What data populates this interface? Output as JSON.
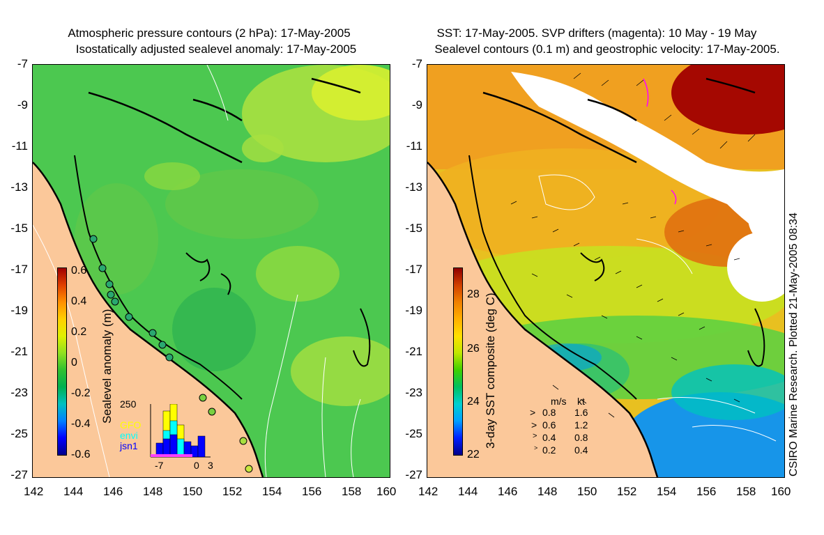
{
  "left_panel": {
    "title_line1": "Atmospheric pressure contours (2 hPa): 17-May-2005",
    "title_line2": "Isostatically adjusted sealevel anomaly: 17-May-2005",
    "colorbar": {
      "label": "Sealevel anomaly (m)",
      "ticks": [
        "0.6",
        "0.4",
        "0.2",
        "0",
        "-0.2",
        "-0.4",
        "-0.6"
      ],
      "colors": [
        "#00008b",
        "#0000ff",
        "#0080ff",
        "#00c0c0",
        "#00b050",
        "#30c030",
        "#90e020",
        "#e0f000",
        "#ffd000",
        "#ff9000",
        "#e04000",
        "#a00000"
      ]
    },
    "histogram": {
      "ymax_label": "250",
      "x_labels": [
        "-7",
        "0",
        "3"
      ],
      "legend": [
        "GFO",
        "envi",
        "jsn1"
      ],
      "legend_colors": [
        "#ffff00",
        "#00ffff",
        "#0000ff"
      ]
    }
  },
  "right_panel": {
    "title_line1": "SST: 17-May-2005. SVP drifters (magenta): 10 May - 19 May",
    "title_line2": "Sealevel contours (0.1 m) and geostrophic velocity: 17-May-2005.",
    "colorbar": {
      "label": "3-day SST composite (deg C)",
      "ticks": [
        "28",
        "26",
        "24",
        "22"
      ],
      "colors": [
        "#00008b",
        "#0020ff",
        "#00a0ff",
        "#00d0d0",
        "#00c060",
        "#40d000",
        "#c0e800",
        "#ffe000",
        "#ffb000",
        "#f08000",
        "#d04000",
        "#900000"
      ]
    },
    "velocity_key": {
      "header_ms": "m/s",
      "header_kt": "kt",
      "rows": [
        {
          "ms": "0.8",
          "kt": "1.6"
        },
        {
          "ms": "0.6",
          "kt": "1.2"
        },
        {
          "ms": "0.4",
          "kt": "0.8"
        },
        {
          "ms": "0.2",
          "kt": "0.4"
        }
      ]
    },
    "credit": "CSIRO Marine Research. Plotted 21-May-2005 08:34"
  },
  "axes": {
    "x_ticks": [
      "142",
      "144",
      "146",
      "148",
      "150",
      "152",
      "154",
      "156",
      "158",
      "160"
    ],
    "y_ticks": [
      "-7",
      "-9",
      "-11",
      "-13",
      "-15",
      "-17",
      "-19",
      "-21",
      "-23",
      "-25",
      "-27"
    ]
  },
  "colors": {
    "land": "#fbc89a",
    "ocean_anomaly": "#4cc850",
    "sst_warm": "#f0a020",
    "cloud": "#ffffff"
  }
}
